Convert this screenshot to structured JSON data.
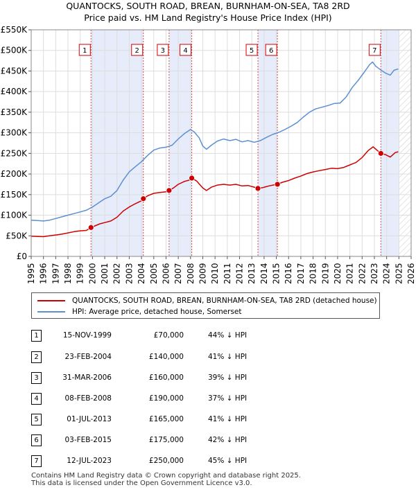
{
  "title_line1": "QUANTOCKS, SOUTH ROAD, BREAN, BURNHAM-ON-SEA, TA8 2RD",
  "title_line2": "Price paid vs. HM Land Registry's House Price Index (HPI)",
  "colors": {
    "property": "#cc0000",
    "hpi": "#5b8fd0",
    "shade": "#e6ecfa",
    "marker_line": "#cc0000",
    "grid": "#dddddd"
  },
  "chart_data": {
    "type": "line",
    "title": "QUANTOCKS, SOUTH ROAD, BREAN, BURNHAM-ON-SEA, TA8 2RD — Price paid vs. HM Land Registry's House Price Index (HPI)",
    "xlabel": "",
    "ylabel": "",
    "xlim": [
      1995,
      2026
    ],
    "ylim": [
      0,
      550000
    ],
    "x_ticks": [
      1995,
      1996,
      1997,
      1998,
      1999,
      2000,
      2001,
      2002,
      2003,
      2004,
      2005,
      2006,
      2007,
      2008,
      2009,
      2010,
      2011,
      2012,
      2013,
      2014,
      2015,
      2016,
      2017,
      2018,
      2019,
      2020,
      2021,
      2022,
      2023,
      2024,
      2025,
      2026
    ],
    "y_ticks": [
      {
        "value": 0,
        "label": "£0"
      },
      {
        "value": 50000,
        "label": "£50K"
      },
      {
        "value": 100000,
        "label": "£100K"
      },
      {
        "value": 150000,
        "label": "£150K"
      },
      {
        "value": 200000,
        "label": "£200K"
      },
      {
        "value": 250000,
        "label": "£250K"
      },
      {
        "value": 300000,
        "label": "£300K"
      },
      {
        "value": 350000,
        "label": "£350K"
      },
      {
        "value": 400000,
        "label": "£400K"
      },
      {
        "value": 450000,
        "label": "£450K"
      },
      {
        "value": 500000,
        "label": "£500K"
      },
      {
        "value": 550000,
        "label": "£550K"
      }
    ],
    "grid": true,
    "data_ends": 2025.0,
    "series": [
      {
        "name": "QUANTOCKS, SOUTH ROAD, BREAN, BURNHAM-ON-SEA, TA8 2RD (detached house)",
        "color": "#cc0000",
        "points": [
          [
            1995.0,
            49000
          ],
          [
            1995.5,
            48500
          ],
          [
            1996.0,
            48000
          ],
          [
            1996.5,
            50000
          ],
          [
            1997.0,
            52000
          ],
          [
            1997.5,
            54000
          ],
          [
            1998.0,
            57000
          ],
          [
            1998.5,
            60000
          ],
          [
            1999.0,
            62000
          ],
          [
            1999.5,
            63000
          ],
          [
            1999.88,
            70000
          ],
          [
            2000.2,
            74000
          ],
          [
            2000.6,
            79000
          ],
          [
            2001.0,
            82000
          ],
          [
            2001.5,
            86000
          ],
          [
            2002.0,
            95000
          ],
          [
            2002.5,
            110000
          ],
          [
            2003.0,
            120000
          ],
          [
            2003.5,
            128000
          ],
          [
            2004.0,
            135000
          ],
          [
            2004.15,
            140000
          ],
          [
            2004.5,
            147000
          ],
          [
            2005.0,
            153000
          ],
          [
            2005.5,
            155000
          ],
          [
            2006.0,
            157000
          ],
          [
            2006.25,
            160000
          ],
          [
            2006.6,
            166000
          ],
          [
            2007.0,
            175000
          ],
          [
            2007.5,
            182000
          ],
          [
            2008.0,
            186000
          ],
          [
            2008.1,
            190000
          ],
          [
            2008.5,
            183000
          ],
          [
            2009.0,
            166000
          ],
          [
            2009.3,
            160000
          ],
          [
            2009.7,
            168000
          ],
          [
            2010.2,
            173000
          ],
          [
            2010.7,
            175000
          ],
          [
            2011.2,
            173000
          ],
          [
            2011.7,
            175000
          ],
          [
            2012.2,
            171000
          ],
          [
            2012.7,
            172000
          ],
          [
            2013.2,
            168000
          ],
          [
            2013.5,
            165000
          ],
          [
            2013.9,
            167000
          ],
          [
            2014.4,
            171000
          ],
          [
            2014.9,
            174000
          ],
          [
            2015.09,
            175000
          ],
          [
            2015.5,
            180000
          ],
          [
            2016.0,
            184000
          ],
          [
            2016.5,
            190000
          ],
          [
            2017.0,
            195000
          ],
          [
            2017.5,
            201000
          ],
          [
            2018.0,
            205000
          ],
          [
            2018.5,
            208000
          ],
          [
            2019.0,
            211000
          ],
          [
            2019.5,
            214000
          ],
          [
            2020.0,
            213000
          ],
          [
            2020.5,
            216000
          ],
          [
            2021.0,
            222000
          ],
          [
            2021.5,
            228000
          ],
          [
            2022.0,
            240000
          ],
          [
            2022.5,
            257000
          ],
          [
            2022.9,
            266000
          ],
          [
            2023.2,
            258000
          ],
          [
            2023.53,
            250000
          ],
          [
            2023.9,
            247000
          ],
          [
            2024.3,
            241000
          ],
          [
            2024.7,
            252000
          ],
          [
            2024.95,
            254000
          ]
        ]
      },
      {
        "name": "HPI: Average price, detached house, Somerset",
        "color": "#5b8fd0",
        "points": [
          [
            1995.0,
            88000
          ],
          [
            1995.5,
            87000
          ],
          [
            1996.0,
            86000
          ],
          [
            1996.5,
            88000
          ],
          [
            1997.0,
            92000
          ],
          [
            1997.5,
            96000
          ],
          [
            1998.0,
            100000
          ],
          [
            1998.5,
            104000
          ],
          [
            1999.0,
            108000
          ],
          [
            1999.5,
            112000
          ],
          [
            2000.0,
            120000
          ],
          [
            2000.5,
            130000
          ],
          [
            2001.0,
            140000
          ],
          [
            2001.5,
            146000
          ],
          [
            2002.0,
            160000
          ],
          [
            2002.5,
            185000
          ],
          [
            2003.0,
            205000
          ],
          [
            2003.5,
            218000
          ],
          [
            2004.0,
            230000
          ],
          [
            2004.5,
            245000
          ],
          [
            2005.0,
            258000
          ],
          [
            2005.5,
            263000
          ],
          [
            2006.0,
            265000
          ],
          [
            2006.5,
            270000
          ],
          [
            2007.0,
            285000
          ],
          [
            2007.5,
            298000
          ],
          [
            2008.0,
            308000
          ],
          [
            2008.3,
            302000
          ],
          [
            2008.7,
            288000
          ],
          [
            2009.0,
            268000
          ],
          [
            2009.3,
            260000
          ],
          [
            2009.7,
            270000
          ],
          [
            2010.2,
            280000
          ],
          [
            2010.7,
            285000
          ],
          [
            2011.2,
            281000
          ],
          [
            2011.7,
            284000
          ],
          [
            2012.2,
            278000
          ],
          [
            2012.7,
            281000
          ],
          [
            2013.2,
            277000
          ],
          [
            2013.7,
            281000
          ],
          [
            2014.2,
            289000
          ],
          [
            2014.7,
            296000
          ],
          [
            2015.2,
            301000
          ],
          [
            2015.7,
            308000
          ],
          [
            2016.2,
            316000
          ],
          [
            2016.7,
            325000
          ],
          [
            2017.2,
            338000
          ],
          [
            2017.7,
            350000
          ],
          [
            2018.2,
            358000
          ],
          [
            2018.7,
            362000
          ],
          [
            2019.2,
            366000
          ],
          [
            2019.7,
            371000
          ],
          [
            2020.2,
            372000
          ],
          [
            2020.7,
            387000
          ],
          [
            2021.2,
            410000
          ],
          [
            2021.7,
            428000
          ],
          [
            2022.2,
            448000
          ],
          [
            2022.6,
            465000
          ],
          [
            2022.85,
            472000
          ],
          [
            2023.1,
            462000
          ],
          [
            2023.5,
            453000
          ],
          [
            2023.9,
            445000
          ],
          [
            2024.3,
            440000
          ],
          [
            2024.6,
            452000
          ],
          [
            2024.95,
            455000
          ]
        ]
      }
    ],
    "sales": [
      {
        "num": "1",
        "x": 1999.88,
        "price": 70000
      },
      {
        "num": "2",
        "x": 2004.15,
        "price": 140000
      },
      {
        "num": "3",
        "x": 2006.25,
        "price": 160000
      },
      {
        "num": "4",
        "x": 2008.1,
        "price": 190000
      },
      {
        "num": "5",
        "x": 2013.5,
        "price": 165000
      },
      {
        "num": "6",
        "x": 2015.09,
        "price": 175000
      },
      {
        "num": "7",
        "x": 2023.53,
        "price": 250000
      }
    ],
    "shaded_spans": [
      [
        1999.88,
        2004.15
      ],
      [
        2006.25,
        2008.1
      ],
      [
        2013.5,
        2015.09
      ],
      [
        2023.53,
        2025.0
      ]
    ]
  },
  "legend": {
    "property_label": "QUANTOCKS, SOUTH ROAD, BREAN, BURNHAM-ON-SEA, TA8 2RD (detached house)",
    "hpi_label": "HPI: Average price, detached house, Somerset"
  },
  "table": [
    {
      "num": "1",
      "date": "15-NOV-1999",
      "price": "£70,000",
      "hpi": "44% ↓ HPI"
    },
    {
      "num": "2",
      "date": "23-FEB-2004",
      "price": "£140,000",
      "hpi": "41% ↓ HPI"
    },
    {
      "num": "3",
      "date": "31-MAR-2006",
      "price": "£160,000",
      "hpi": "39% ↓ HPI"
    },
    {
      "num": "4",
      "date": "08-FEB-2008",
      "price": "£190,000",
      "hpi": "37% ↓ HPI"
    },
    {
      "num": "5",
      "date": "01-JUL-2013",
      "price": "£165,000",
      "hpi": "41% ↓ HPI"
    },
    {
      "num": "6",
      "date": "03-FEB-2015",
      "price": "£175,000",
      "hpi": "42% ↓ HPI"
    },
    {
      "num": "7",
      "date": "12-JUL-2023",
      "price": "£250,000",
      "hpi": "45% ↓ HPI"
    }
  ],
  "footer_line1": "Contains HM Land Registry data © Crown copyright and database right 2025.",
  "footer_line2": "This data is licensed under the Open Government Licence v3.0."
}
